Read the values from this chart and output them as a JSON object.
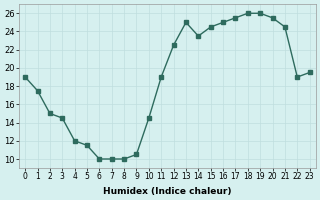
{
  "x": [
    0,
    1,
    2,
    3,
    4,
    5,
    6,
    7,
    8,
    9,
    10,
    11,
    12,
    13,
    14,
    15,
    16,
    17,
    18,
    19,
    20,
    21,
    22,
    23
  ],
  "y": [
    19,
    17.5,
    15,
    14.5,
    12,
    11.5,
    10,
    10,
    10,
    10.5,
    14.5,
    19,
    22.5,
    25,
    23.5,
    24.5,
    25,
    25.5,
    26,
    26,
    25.5,
    24.5,
    19,
    19.5
  ],
  "line_color": "#2e6b5e",
  "marker_color": "#2e6b5e",
  "bg_color": "#d6f0ef",
  "grid_color": "#c0dede",
  "xlabel": "Humidex (Indice chaleur)",
  "ylim": [
    9,
    27
  ],
  "xlim": [
    -0.5,
    23.5
  ],
  "yticks": [
    10,
    12,
    14,
    16,
    18,
    20,
    22,
    24,
    26
  ],
  "xtick_labels": [
    "0",
    "1",
    "2",
    "3",
    "4",
    "5",
    "6",
    "7",
    "8",
    "9",
    "10",
    "11",
    "12",
    "13",
    "14",
    "15",
    "16",
    "17",
    "18",
    "19",
    "20",
    "21",
    "22",
    "23"
  ]
}
